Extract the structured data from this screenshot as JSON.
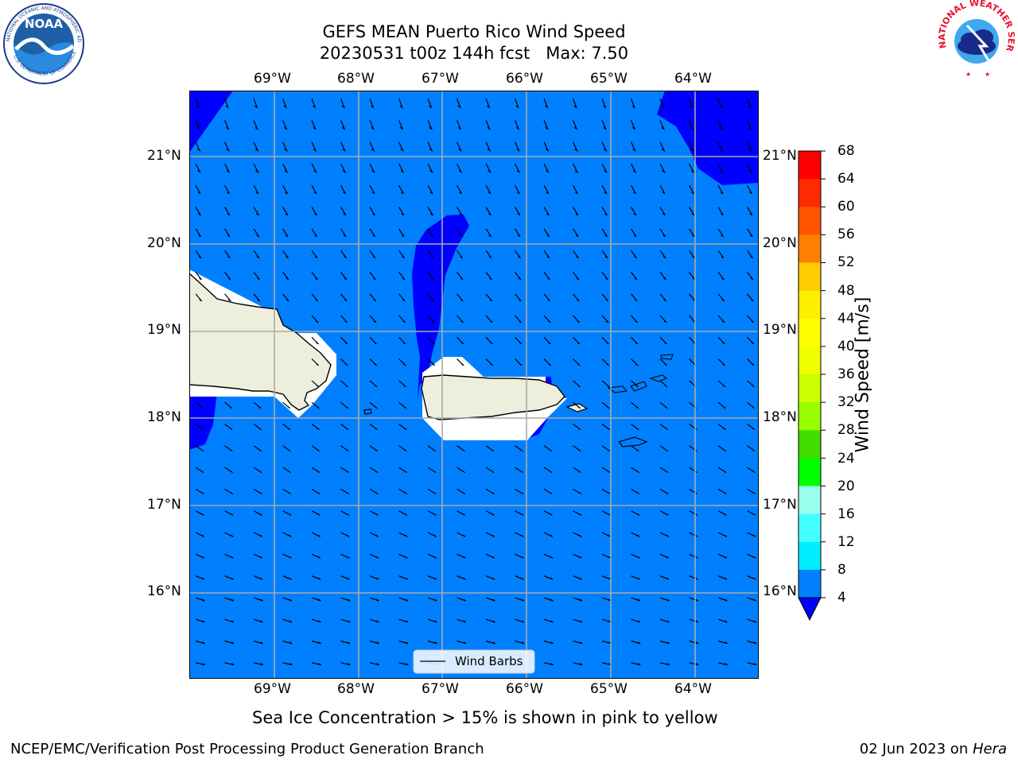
{
  "title": {
    "line1": "GEFS MEAN Puerto Rico Wind Speed",
    "line2": "20230531 t00z 144h fcst   Max: 7.50"
  },
  "map": {
    "lon_labels": [
      "69°W",
      "68°W",
      "67°W",
      "66°W",
      "65°W",
      "64°W"
    ],
    "lat_labels": [
      "21°N",
      "20°N",
      "19°N",
      "18°N",
      "17°N",
      "16°N"
    ],
    "legend_label": "Wind Barbs",
    "colors": {
      "ocean": "#0080ff",
      "low_wind": "#0000ff",
      "land": "#eeeedc",
      "masked": "#ffffff",
      "grid": "#aaaaaa"
    }
  },
  "colorbar": {
    "label": "Wind Speed [m/s]",
    "ticks": [
      "68",
      "64",
      "60",
      "56",
      "52",
      "48",
      "44",
      "40",
      "36",
      "32",
      "28",
      "24",
      "20",
      "16",
      "12",
      "8",
      "4"
    ],
    "colors": [
      "#ff0000",
      "#ff2a00",
      "#ff5500",
      "#ff8000",
      "#ffa800",
      "#ffcc00",
      "#ffee00",
      "#ffff00",
      "#eeff00",
      "#ccff00",
      "#99ff00",
      "#44dd00",
      "#00ff00",
      "#44ff77",
      "#99ffee",
      "#44ffff",
      "#00eeff",
      "#0080ff"
    ],
    "under_color": "#0000ff"
  },
  "caption": "Sea Ice Concentration > 15% is shown in pink to yellow",
  "footer": {
    "left": "NCEP/EMC/Verification Post Processing Product Generation Branch",
    "right_date": "02 Jun 2023 on ",
    "right_machine": "Hera"
  },
  "logos": {
    "noaa_text": "NOAA",
    "noaa_ring_top": "NATIONAL OCEANIC AND ATMOSPHERIC ADMINISTRATION",
    "noaa_ring_bottom": "U.S. DEPARTMENT OF COMMERCE",
    "nws_text": "NATIONAL WEATHER SERVICE"
  }
}
